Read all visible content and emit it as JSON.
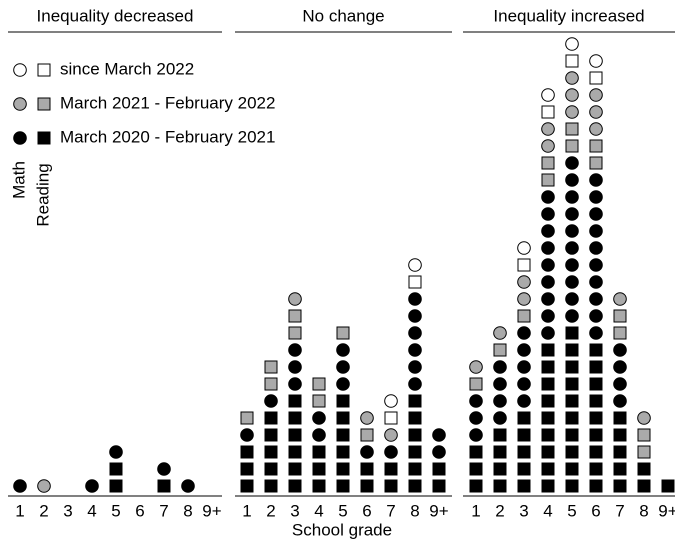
{
  "chart_data": {
    "type": "unit",
    "x_label": "School grade",
    "panels": [
      "Inequality decreased",
      "No change",
      "Inequality increased"
    ],
    "categories": [
      "1",
      "2",
      "3",
      "4",
      "5",
      "6",
      "7",
      "8",
      "9+"
    ],
    "subjects": [
      "Math",
      "Reading"
    ],
    "series": [
      {
        "name": "since March 2022",
        "color": "#ffffff",
        "values": [
          [
            [
              0,
              0,
              0,
              0,
              0,
              0,
              0,
              0,
              0
            ],
            [
              0,
              0,
              0,
              0,
              0,
              0,
              0,
              0,
              0
            ]
          ],
          [
            [
              0,
              0,
              0,
              0,
              0,
              0,
              1,
              1,
              0
            ],
            [
              0,
              0,
              0,
              0,
              0,
              0,
              1,
              1,
              0
            ]
          ],
          [
            [
              0,
              0,
              1,
              1,
              1,
              1,
              0,
              0,
              0
            ],
            [
              0,
              0,
              1,
              1,
              1,
              1,
              0,
              0,
              0
            ]
          ]
        ]
      },
      {
        "name": "March 2021 - February 2022",
        "color": "#aaaaaa",
        "values": [
          [
            [
              0,
              1,
              0,
              0,
              0,
              0,
              0,
              0,
              0
            ],
            [
              0,
              0,
              0,
              0,
              0,
              0,
              0,
              0,
              0
            ]
          ],
          [
            [
              0,
              0,
              1,
              0,
              0,
              1,
              1,
              0,
              0
            ],
            [
              1,
              2,
              2,
              2,
              1,
              1,
              0,
              0,
              0
            ]
          ],
          [
            [
              1,
              1,
              2,
              2,
              3,
              3,
              1,
              1,
              0
            ],
            [
              1,
              1,
              1,
              2,
              2,
              2,
              2,
              2,
              0
            ]
          ]
        ]
      },
      {
        "name": "March 2020 - February 2021",
        "color": "#000000",
        "values": [
          [
            [
              1,
              0,
              0,
              1,
              1,
              0,
              1,
              1,
              0
            ],
            [
              0,
              0,
              0,
              0,
              2,
              0,
              1,
              0,
              0
            ]
          ],
          [
            [
              1,
              1,
              3,
              2,
              3,
              1,
              1,
              6,
              2
            ],
            [
              3,
              5,
              6,
              3,
              6,
              2,
              2,
              6,
              2
            ]
          ],
          [
            [
              3,
              4,
              5,
              9,
              10,
              10,
              4,
              0,
              0
            ],
            [
              3,
              4,
              5,
              9,
              10,
              9,
              5,
              2,
              1
            ]
          ]
        ]
      }
    ]
  }
}
